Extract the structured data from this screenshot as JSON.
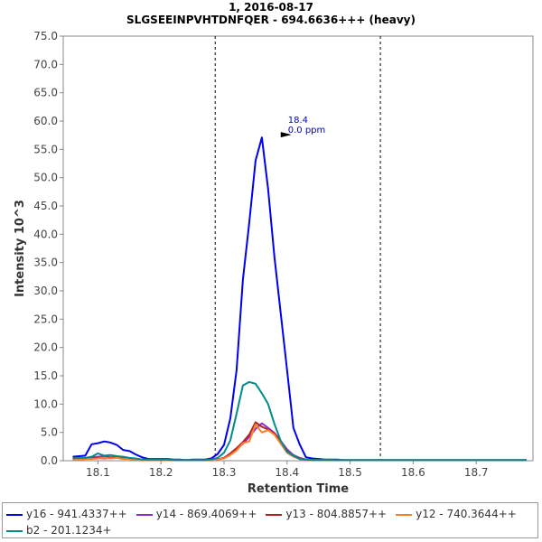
{
  "chart_data": {
    "type": "line",
    "title": "1, 2016-08-17",
    "subtitle": "SLGSEEINPVHTDNFQER - 694.6636+++ (heavy)",
    "xlabel": "Retention Time",
    "ylabel": "Intensity 10^3",
    "xlim": [
      18.045,
      18.79
    ],
    "ylim": [
      0,
      75
    ],
    "x_ticks": [
      "18.1",
      "18.2",
      "18.3",
      "18.4",
      "18.5",
      "18.6",
      "18.7"
    ],
    "x_tick_values": [
      18.1,
      18.2,
      18.3,
      18.4,
      18.5,
      18.6,
      18.7
    ],
    "y_ticks": [
      "0.0",
      "5.0",
      "10.0",
      "15.0",
      "20.0",
      "25.0",
      "30.0",
      "35.0",
      "40.0",
      "45.0",
      "50.0",
      "55.0",
      "60.0",
      "65.0",
      "70.0",
      "75.0"
    ],
    "y_tick_values": [
      0,
      5,
      10,
      15,
      20,
      25,
      30,
      35,
      40,
      45,
      50,
      55,
      60,
      65,
      70,
      75
    ],
    "grid": false,
    "legend_position": "bottom",
    "integration_bounds": [
      18.286,
      18.548
    ],
    "peak_annotation": {
      "x": 18.41,
      "y": 57.1,
      "rt_label": "18.4",
      "ppm_label": "0.0 ppm",
      "color": "#0000cc"
    },
    "x": [
      18.06,
      18.07,
      18.08,
      18.09,
      18.1,
      18.11,
      18.12,
      18.13,
      18.14,
      18.15,
      18.16,
      18.17,
      18.18,
      18.19,
      18.2,
      18.21,
      18.22,
      18.23,
      18.24,
      18.25,
      18.26,
      18.27,
      18.28,
      18.29,
      18.3,
      18.31,
      18.32,
      18.33,
      18.34,
      18.35,
      18.36,
      18.37,
      18.38,
      18.39,
      18.4,
      18.41,
      18.42,
      18.43,
      18.44,
      18.45,
      18.46,
      18.47,
      18.48,
      18.49,
      18.5,
      18.51,
      18.52,
      18.53,
      18.54,
      18.55,
      18.56,
      18.57,
      18.58,
      18.6,
      18.62,
      18.64,
      18.66,
      18.68,
      18.7,
      18.72,
      18.74,
      18.76,
      18.78
    ],
    "series": [
      {
        "name": "y16 - 941.4337++",
        "color": "#0000ee",
        "values": [
          0.7,
          0.8,
          0.9,
          2.9,
          3.1,
          3.4,
          3.2,
          2.8,
          1.9,
          1.7,
          1.1,
          0.6,
          0.3,
          0.3,
          0.3,
          0.3,
          0.2,
          0.2,
          0.1,
          0.2,
          0.2,
          0.2,
          0.4,
          1.2,
          2.8,
          7.5,
          16,
          32,
          42,
          53,
          57.1,
          48,
          36,
          26,
          16,
          5.8,
          2.9,
          0.6,
          0.4,
          0.3,
          0.2,
          0.2,
          0.2,
          0.1,
          0.1,
          0.1,
          0.1,
          0.1,
          0.1,
          0.1,
          0.1,
          0.1,
          0.1,
          0.1,
          0.1,
          0.1,
          0.1,
          0.1,
          0.1,
          0.1,
          0.1,
          0.1,
          0.1
        ]
      },
      {
        "name": "y14 - 869.4069++",
        "color": "#8a2be2",
        "values": [
          0.3,
          0.4,
          0.4,
          0.6,
          0.7,
          0.8,
          0.6,
          0.7,
          0.5,
          0.4,
          0.3,
          0.2,
          0.1,
          0.1,
          0.1,
          0.1,
          0.1,
          0.1,
          0.1,
          0.1,
          0.1,
          0.1,
          0.1,
          0.2,
          0.5,
          1.2,
          2.0,
          3.0,
          4.2,
          5.6,
          6.6,
          5.8,
          4.9,
          3.5,
          2.0,
          1.0,
          0.5,
          0.2,
          0.1,
          0.1,
          0.1,
          0.1,
          0.1,
          0.1,
          0.1,
          0.1,
          0.1,
          0.1,
          0.1,
          0.1,
          0.1,
          0.1,
          0.1,
          0.1,
          0.1,
          0.1,
          0.1,
          0.1,
          0.1,
          0.1,
          0.1,
          0.1,
          0.1
        ]
      },
      {
        "name": "y13 - 804.8857++",
        "color": "#b22222",
        "values": [
          0.2,
          0.3,
          0.3,
          0.4,
          0.5,
          0.4,
          0.5,
          0.6,
          0.4,
          0.3,
          0.2,
          0.1,
          0.1,
          0.1,
          0.1,
          0.1,
          0.1,
          0.1,
          0.1,
          0.1,
          0.1,
          0.1,
          0.1,
          0.2,
          0.5,
          1.3,
          2.2,
          3.3,
          4.6,
          6.8,
          6.0,
          5.5,
          4.8,
          3.3,
          1.8,
          0.8,
          0.4,
          0.2,
          0.1,
          0.1,
          0.1,
          0.1,
          0.1,
          0.1,
          0.1,
          0.1,
          0.1,
          0.1,
          0.1,
          0.1,
          0.1,
          0.1,
          0.1,
          0.1,
          0.1,
          0.1,
          0.1,
          0.1,
          0.1,
          0.1,
          0.1,
          0.1,
          0.1
        ]
      },
      {
        "name": "y12 - 740.3644++",
        "color": "#ff7f27",
        "values": [
          0.2,
          0.2,
          0.3,
          0.3,
          0.4,
          0.5,
          0.4,
          0.5,
          0.3,
          0.3,
          0.2,
          0.1,
          0.1,
          0.1,
          0.1,
          0.1,
          0.1,
          0.1,
          0.1,
          0.1,
          0.1,
          0.1,
          0.1,
          0.2,
          0.4,
          1.0,
          1.8,
          3.1,
          3.4,
          6.4,
          5.0,
          5.4,
          4.6,
          3.0,
          1.4,
          0.7,
          0.3,
          0.1,
          0.1,
          0.1,
          0.1,
          0.1,
          0.1,
          0.1,
          0.1,
          0.1,
          0.1,
          0.1,
          0.1,
          0.1,
          0.1,
          0.1,
          0.1,
          0.1,
          0.1,
          0.1,
          0.1,
          0.1,
          0.1,
          0.1,
          0.1,
          0.1,
          0.1
        ]
      },
      {
        "name": "b2 - 201.1234+",
        "color": "#008b8b",
        "values": [
          0.4,
          0.5,
          0.5,
          0.7,
          1.3,
          0.9,
          1.0,
          0.8,
          0.7,
          0.5,
          0.4,
          0.2,
          0.2,
          0.2,
          0.2,
          0.2,
          0.1,
          0.1,
          0.1,
          0.1,
          0.1,
          0.1,
          0.2,
          0.5,
          1.4,
          3.6,
          8.3,
          13.3,
          13.9,
          13.6,
          11.9,
          10.0,
          6.5,
          3.5,
          1.6,
          0.9,
          0.3,
          0.2,
          0.1,
          0.1,
          0.1,
          0.1,
          0.1,
          0.1,
          0.1,
          0.1,
          0.1,
          0.1,
          0.1,
          0.1,
          0.1,
          0.1,
          0.1,
          0.1,
          0.1,
          0.1,
          0.1,
          0.1,
          0.1,
          0.1,
          0.1,
          0.1,
          0.1
        ]
      }
    ]
  }
}
